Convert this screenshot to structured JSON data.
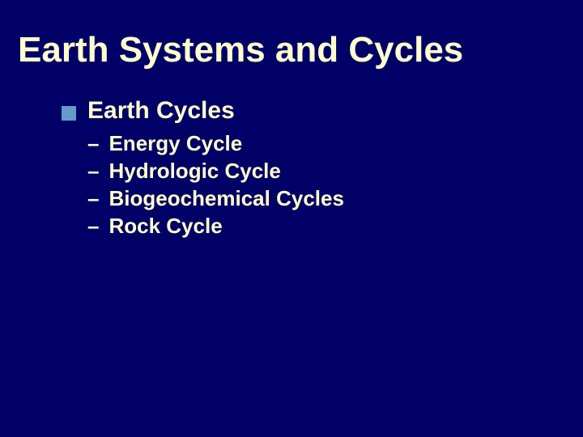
{
  "slide": {
    "title": "Earth Systems and Cycles",
    "title_color": "#ffffcc",
    "title_fontsize": 44,
    "background_color": "#000066",
    "level1": {
      "bullet_color": "#6699cc",
      "bullet_size": 18,
      "text_color": "#ffffcc",
      "fontsize": 30,
      "items": [
        {
          "label": "Earth Cycles",
          "children": {
            "dash_color": "#ffffcc",
            "text_color": "#ffffcc",
            "fontsize": 26,
            "items": [
              {
                "label": "Energy Cycle"
              },
              {
                "label": "Hydrologic Cycle"
              },
              {
                "label": "Biogeochemical Cycles"
              },
              {
                "label": "Rock Cycle"
              }
            ]
          }
        }
      ]
    }
  }
}
